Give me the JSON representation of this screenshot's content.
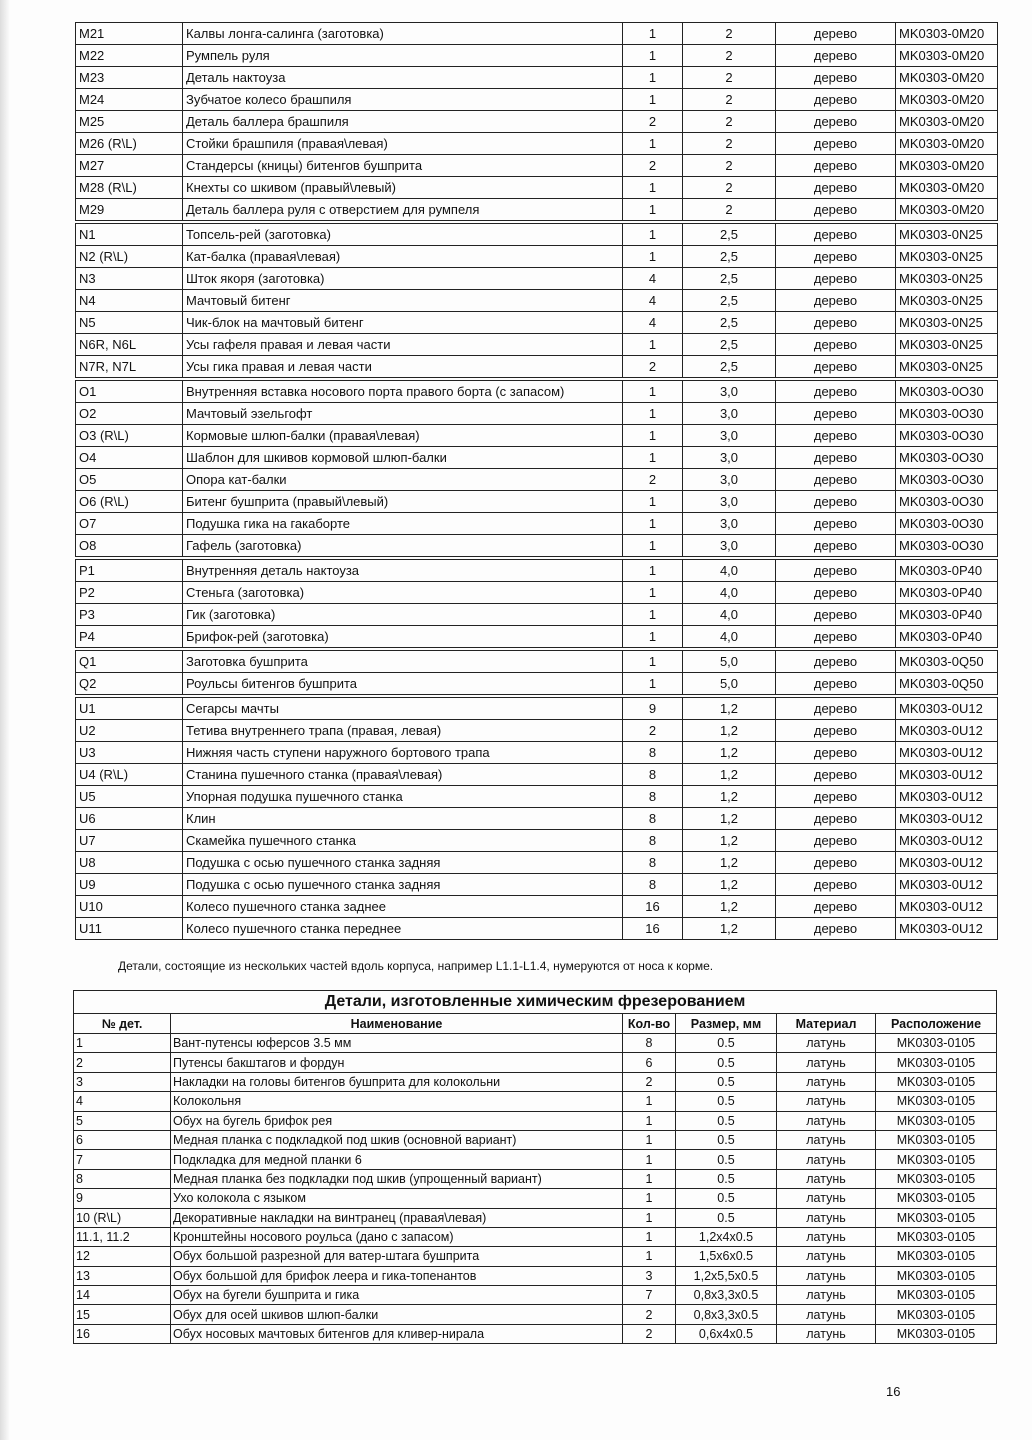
{
  "table1": {
    "groups": [
      [
        [
          "M21",
          "Калвы лонга-салинга (заготовка)",
          "1",
          "2",
          "дерево",
          "MK0303-0M20"
        ],
        [
          "M22",
          "Румпель руля",
          "1",
          "2",
          "дерево",
          "MK0303-0M20"
        ],
        [
          "M23",
          "Деталь нактоуза",
          "1",
          "2",
          "дерево",
          "MK0303-0M20"
        ],
        [
          "M24",
          "Зубчатое колесо брашпиля",
          "1",
          "2",
          "дерево",
          "MK0303-0M20"
        ],
        [
          "M25",
          "Деталь баллера брашпиля",
          "2",
          "2",
          "дерево",
          "MK0303-0M20"
        ],
        [
          "M26 (R\\L)",
          "Стойки брашпиля (правая\\левая)",
          "1",
          "2",
          "дерево",
          "MK0303-0M20"
        ],
        [
          "M27",
          "Стандерсы (кницы) битенгов бушприта",
          "2",
          "2",
          "дерево",
          "MK0303-0M20"
        ],
        [
          "M28 (R\\L)",
          "Кнехты со шкивом (правый\\левый)",
          "1",
          "2",
          "дерево",
          "MK0303-0M20"
        ],
        [
          "M29",
          "Деталь баллера руля с отверстием для румпеля",
          "1",
          "2",
          "дерево",
          "MK0303-0M20"
        ]
      ],
      [
        [
          "N1",
          "Топсель-рей (заготовка)",
          "1",
          "2,5",
          "дерево",
          "MK0303-0N25"
        ],
        [
          "N2 (R\\L)",
          "Кат-балка  (правая\\левая)",
          "1",
          "2,5",
          "дерево",
          "MK0303-0N25"
        ],
        [
          "N3",
          "Шток якоря (заготовка)",
          "4",
          "2,5",
          "дерево",
          "MK0303-0N25"
        ],
        [
          "N4",
          "Мачтовый битенг",
          "4",
          "2,5",
          "дерево",
          "MK0303-0N25"
        ],
        [
          "N5",
          "Чик-блок на мачтовый битенг",
          "4",
          "2,5",
          "дерево",
          "MK0303-0N25"
        ],
        [
          "N6R, N6L",
          "Усы гафеля правая и левая части",
          "1",
          "2,5",
          "дерево",
          "MK0303-0N25"
        ],
        [
          "N7R, N7L",
          "Усы гика правая и левая части",
          "2",
          "2,5",
          "дерево",
          "MK0303-0N25"
        ]
      ],
      [
        [
          "O1",
          "Внутренняя вставка носового порта правого борта (с запасом)",
          "1",
          "3,0",
          "дерево",
          "MK0303-0O30"
        ],
        [
          "O2",
          "Мачтовый эзельгофт",
          "1",
          "3,0",
          "дерево",
          "MK0303-0O30"
        ],
        [
          "O3 (R\\L)",
          "Кормовые шлюп-балки  (правая\\левая)",
          "1",
          "3,0",
          "дерево",
          "MK0303-0O30"
        ],
        [
          "O4",
          "Шаблон для шкивов кормовой шлюп-балки",
          "1",
          "3,0",
          "дерево",
          "MK0303-0O30"
        ],
        [
          "O5",
          "Опора кат-балки",
          "2",
          "3,0",
          "дерево",
          "MK0303-0O30"
        ],
        [
          "O6 (R\\L)",
          "Битенг бушприта  (правый\\левый)",
          "1",
          "3,0",
          "дерево",
          "MK0303-0O30"
        ],
        [
          "O7",
          "Подушка гика на гакаборте",
          "1",
          "3,0",
          "дерево",
          "MK0303-0O30"
        ],
        [
          "O8",
          "Гафель (заготовка)",
          "1",
          "3,0",
          "дерево",
          "MK0303-0O30"
        ]
      ],
      [
        [
          "P1",
          "Внутренняя деталь нактоуза",
          "1",
          "4,0",
          "дерево",
          "MK0303-0P40"
        ],
        [
          "P2",
          "Стеньга (заготовка)",
          "1",
          "4,0",
          "дерево",
          "MK0303-0P40"
        ],
        [
          "P3",
          "Гик (заготовка)",
          "1",
          "4,0",
          "дерево",
          "MK0303-0P40"
        ],
        [
          "P4",
          "Брифок-рей (заготовка)",
          "1",
          "4,0",
          "дерево",
          "MK0303-0P40"
        ]
      ],
      [
        [
          "Q1",
          "Заготовка бушприта",
          "1",
          "5,0",
          "дерево",
          "MK0303-0Q50"
        ],
        [
          "Q2",
          "Роульсы битенгов бушприта",
          "1",
          "5,0",
          "дерево",
          "MK0303-0Q50"
        ]
      ],
      [
        [
          "U1",
          "Сегарсы мачты",
          "9",
          "1,2",
          "дерево",
          "MK0303-0U12"
        ],
        [
          "U2",
          "Тетива внутреннего трапа (правая, левая)",
          "2",
          "1,2",
          "дерево",
          "MK0303-0U12"
        ],
        [
          "U3",
          "Нижняя часть ступени наружного бортового трапа",
          "8",
          "1,2",
          "дерево",
          "MK0303-0U12"
        ],
        [
          "U4 (R\\L)",
          "Станина пушечного станка (правая\\левая)",
          "8",
          "1,2",
          "дерево",
          "MK0303-0U12"
        ],
        [
          "U5",
          "Упорная подушка пушечного станка",
          "8",
          "1,2",
          "дерево",
          "MK0303-0U12"
        ],
        [
          "U6",
          "Клин",
          "8",
          "1,2",
          "дерево",
          "MK0303-0U12"
        ],
        [
          "U7",
          "Скамейка пушечного станка",
          "8",
          "1,2",
          "дерево",
          "MK0303-0U12"
        ],
        [
          "U8",
          "Подушка с осью пушечного станка задняя",
          "8",
          "1,2",
          "дерево",
          "MK0303-0U12"
        ],
        [
          "U9",
          "Подушка с осью пушечного станка задняя",
          "8",
          "1,2",
          "дерево",
          "MK0303-0U12"
        ],
        [
          "U10",
          "Колесо пушечного станка заднее",
          "16",
          "1,2",
          "дерево",
          "MK0303-0U12"
        ],
        [
          "U11",
          "Колесо пушечного станка переднее",
          "16",
          "1,2",
          "дерево",
          "MK0303-0U12"
        ]
      ]
    ]
  },
  "note": "Детали, состоящие из нескольких частей вдоль корпуса, например L1.1-L1.4, нумеруются от носа к корме.",
  "table2": {
    "title": "Детали, изготовленные химическим фрезерованием",
    "headers": [
      "№ дет.",
      "Наименование",
      "Кол-во",
      "Размер, мм",
      "Материал",
      "Расположение"
    ],
    "rows": [
      [
        "1",
        "Вант-путенсы юферсов 3.5 мм",
        "8",
        "0.5",
        "латунь",
        "MK0303-0105"
      ],
      [
        "2",
        "Путенсы бакштагов и фордун",
        "6",
        "0.5",
        "латунь",
        "MK0303-0105"
      ],
      [
        "3",
        "Накладки на головы битенгов бушприта для колокольни",
        "2",
        "0.5",
        "латунь",
        "MK0303-0105"
      ],
      [
        "4",
        "Колокольня",
        "1",
        "0.5",
        "латунь",
        "MK0303-0105"
      ],
      [
        "5",
        "Обух на бугель брифок рея",
        "1",
        "0.5",
        "латунь",
        "MK0303-0105"
      ],
      [
        "6",
        "Медная планка с подкладкой под шкив (основной вариант)",
        "1",
        "0.5",
        "латунь",
        "MK0303-0105"
      ],
      [
        "7",
        "Подкладка для медной планки 6",
        "1",
        "0.5",
        "латунь",
        "MK0303-0105"
      ],
      [
        "8",
        "Медная планка без подкладки под шкив (упрощенный вариант)",
        "1",
        "0.5",
        "латунь",
        "MK0303-0105"
      ],
      [
        "9",
        "Ухо колокола с языком",
        "1",
        "0.5",
        "латунь",
        "MK0303-0105"
      ],
      [
        "10 (R\\L)",
        "Декоративные накладки на винтранец (правая\\левая)",
        "1",
        "0.5",
        "латунь",
        "MK0303-0105"
      ],
      [
        "11.1, 11.2",
        "Кронштейны носового роульса (дано с запасом)",
        "1",
        "1,2x4x0.5",
        "латунь",
        "MK0303-0105"
      ],
      [
        "12",
        "Обух большой разрезной для ватер-штага бушприта",
        "1",
        "1,5x6x0.5",
        "латунь",
        "MK0303-0105"
      ],
      [
        "13",
        "Обух большой для брифок леера и гика-топенантов",
        "3",
        "1,2x5,5x0.5",
        "латунь",
        "MK0303-0105"
      ],
      [
        "14",
        "Обух на бугели бушприта и гика",
        "7",
        "0,8x3,3x0.5",
        "латунь",
        "MK0303-0105"
      ],
      [
        "15",
        "Обух для осей шкивов шлюп-балки",
        "2",
        "0,8x3,3x0.5",
        "латунь",
        "MK0303-0105"
      ],
      [
        "16",
        "Обух носовых мачтовых битенгов для кливер-нирала",
        "2",
        "0,6x4x0.5",
        "латунь",
        "MK0303-0105"
      ]
    ]
  },
  "page_number": "16"
}
